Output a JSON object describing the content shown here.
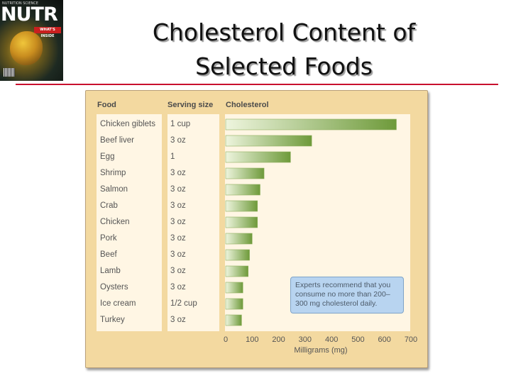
{
  "cover": {
    "logo": "NUTR",
    "badge": "WHAT'S INSIDE",
    "small_caption": "NUTRITION SCIENCE"
  },
  "title": {
    "line1": "Cholesterol Content of",
    "line2": "Selected Foods"
  },
  "colors": {
    "panel_bg": "#f3d9a0",
    "column_bg": "#fff6e4",
    "bar_dark": "#6e9a3a",
    "bar_light": "#eef5de",
    "rule": "#c8102e",
    "callout_bg": "#b8d4f0"
  },
  "headers": {
    "food": "Food",
    "serving": "Serving size",
    "cholesterol": "Cholesterol"
  },
  "callout": {
    "text": "Experts recommend that you consume no more than 200–300 mg cholesterol daily."
  },
  "chart_data": {
    "type": "bar",
    "orientation": "horizontal",
    "title": "Cholesterol Content of Selected Foods",
    "xlabel": "Milligrams (mg)",
    "xlim": [
      0,
      700
    ],
    "xticks": [
      0,
      100,
      200,
      300,
      400,
      500,
      600,
      700
    ],
    "categories": [
      "Chicken giblets",
      "Beef liver",
      "Egg",
      "Shrimp",
      "Salmon",
      "Crab",
      "Chicken",
      "Pork",
      "Beef",
      "Lamb",
      "Oysters",
      "Ice cream",
      "Turkey"
    ],
    "serving_sizes": [
      "1 cup",
      "3 oz",
      "1",
      "3 oz",
      "3 oz",
      "3 oz",
      "3 oz",
      "3 oz",
      "3 oz",
      "3 oz",
      "3 oz",
      "1/2 cup",
      "3 oz"
    ],
    "values": [
      645,
      325,
      245,
      145,
      130,
      120,
      120,
      100,
      90,
      85,
      65,
      65,
      60
    ]
  }
}
